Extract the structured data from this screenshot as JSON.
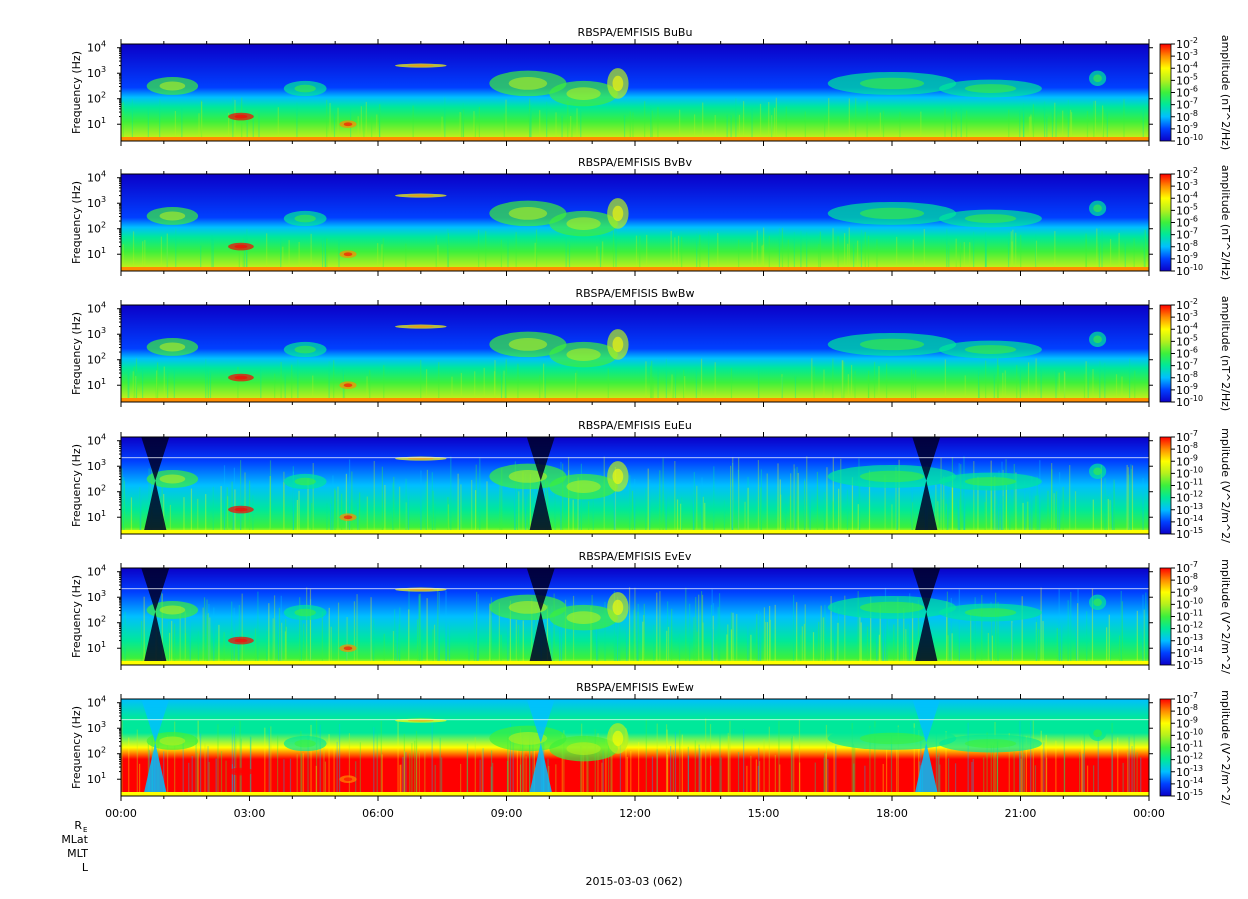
{
  "colormap": [
    "#0b00c8",
    "#0040ff",
    "#00bfff",
    "#00e89a",
    "#3cf03c",
    "#b4f01e",
    "#ffff00",
    "#ff8c00",
    "#ff0000"
  ],
  "chart_data": [
    {
      "type": "heatmap",
      "title": "RBSPA/EMFISIS  BuBu",
      "ylabel": "Frequency (Hz)",
      "yscale": "log",
      "y_ticks": [
        "10",
        "10",
        "10",
        "10"
      ],
      "y_tick_exponents": [
        "1",
        "2",
        "3",
        "4"
      ],
      "y_tick_values": [
        10,
        100,
        1000,
        10000
      ],
      "colorbar_label": "amplitude (nT^2/Hz)",
      "colorbar_ticks": [
        "10",
        "10",
        "10",
        "10",
        "10",
        "10",
        "10",
        "10",
        "10"
      ],
      "colorbar_exponents": [
        "-2",
        "-3",
        "-4",
        "-5",
        "-6",
        "-7",
        "-8",
        "-9",
        "-10"
      ],
      "kind": "B"
    },
    {
      "type": "heatmap",
      "title": "RBSPA/EMFISIS  BvBv",
      "ylabel": "Frequency (Hz)",
      "yscale": "log",
      "y_ticks": [
        "10",
        "10",
        "10",
        "10"
      ],
      "y_tick_exponents": [
        "1",
        "2",
        "3",
        "4"
      ],
      "y_tick_values": [
        10,
        100,
        1000,
        10000
      ],
      "colorbar_label": "amplitude (nT^2/Hz)",
      "colorbar_ticks": [
        "10",
        "10",
        "10",
        "10",
        "10",
        "10",
        "10",
        "10",
        "10"
      ],
      "colorbar_exponents": [
        "-2",
        "-3",
        "-4",
        "-5",
        "-6",
        "-7",
        "-8",
        "-9",
        "-10"
      ],
      "kind": "B"
    },
    {
      "type": "heatmap",
      "title": "RBSPA/EMFISIS  BwBw",
      "ylabel": "Frequency (Hz)",
      "yscale": "log",
      "y_ticks": [
        "10",
        "10",
        "10",
        "10"
      ],
      "y_tick_exponents": [
        "1",
        "2",
        "3",
        "4"
      ],
      "y_tick_values": [
        10,
        100,
        1000,
        10000
      ],
      "colorbar_label": "amplitude (nT^2/Hz)",
      "colorbar_ticks": [
        "10",
        "10",
        "10",
        "10",
        "10",
        "10",
        "10",
        "10",
        "10"
      ],
      "colorbar_exponents": [
        "-2",
        "-3",
        "-4",
        "-5",
        "-6",
        "-7",
        "-8",
        "-9",
        "-10"
      ],
      "kind": "B"
    },
    {
      "type": "heatmap",
      "title": "RBSPA/EMFISIS  EuEu",
      "ylabel": "Frequency (Hz)",
      "yscale": "log",
      "y_ticks": [
        "10",
        "10",
        "10",
        "10"
      ],
      "y_tick_exponents": [
        "1",
        "2",
        "3",
        "4"
      ],
      "y_tick_values": [
        10,
        100,
        1000,
        10000
      ],
      "colorbar_label": "mplitude (V^2/m^2/",
      "colorbar_ticks": [
        "10",
        "10",
        "10",
        "10",
        "10",
        "10",
        "10",
        "10",
        "10"
      ],
      "colorbar_exponents": [
        "-7",
        "-8",
        "-9",
        "-10",
        "-11",
        "-12",
        "-13",
        "-14",
        "-15"
      ],
      "kind": "E"
    },
    {
      "type": "heatmap",
      "title": "RBSPA/EMFISIS  EvEv",
      "ylabel": "Frequency (Hz)",
      "yscale": "log",
      "y_ticks": [
        "10",
        "10",
        "10",
        "10"
      ],
      "y_tick_exponents": [
        "1",
        "2",
        "3",
        "4"
      ],
      "y_tick_values": [
        10,
        100,
        1000,
        10000
      ],
      "colorbar_label": "mplitude (V^2/m^2/",
      "colorbar_ticks": [
        "10",
        "10",
        "10",
        "10",
        "10",
        "10",
        "10",
        "10",
        "10"
      ],
      "colorbar_exponents": [
        "-7",
        "-8",
        "-9",
        "-10",
        "-11",
        "-12",
        "-13",
        "-14",
        "-15"
      ],
      "kind": "E"
    },
    {
      "type": "heatmap",
      "title": "RBSPA/EMFISIS  EwEw",
      "ylabel": "Frequency (Hz)",
      "yscale": "log",
      "y_ticks": [
        "10",
        "10",
        "10",
        "10"
      ],
      "y_tick_exponents": [
        "1",
        "2",
        "3",
        "4"
      ],
      "y_tick_values": [
        10,
        100,
        1000,
        10000
      ],
      "colorbar_label": "mplitude (V^2/m^2/",
      "colorbar_ticks": [
        "10",
        "10",
        "10",
        "10",
        "10",
        "10",
        "10",
        "10",
        "10"
      ],
      "colorbar_exponents": [
        "-7",
        "-8",
        "-9",
        "-10",
        "-11",
        "-12",
        "-13",
        "-14",
        "-15"
      ],
      "kind": "Ew"
    }
  ],
  "time_axis": {
    "ticks": [
      "00:00",
      "03:00",
      "06:00",
      "09:00",
      "12:00",
      "15:00",
      "18:00",
      "21:00",
      "00:00"
    ],
    "date_label": "2015-03-03 (062)"
  },
  "ephemeris_labels": [
    "R",
    "MLat",
    "MLT",
    "L"
  ],
  "ephemeris_subscript": "E"
}
